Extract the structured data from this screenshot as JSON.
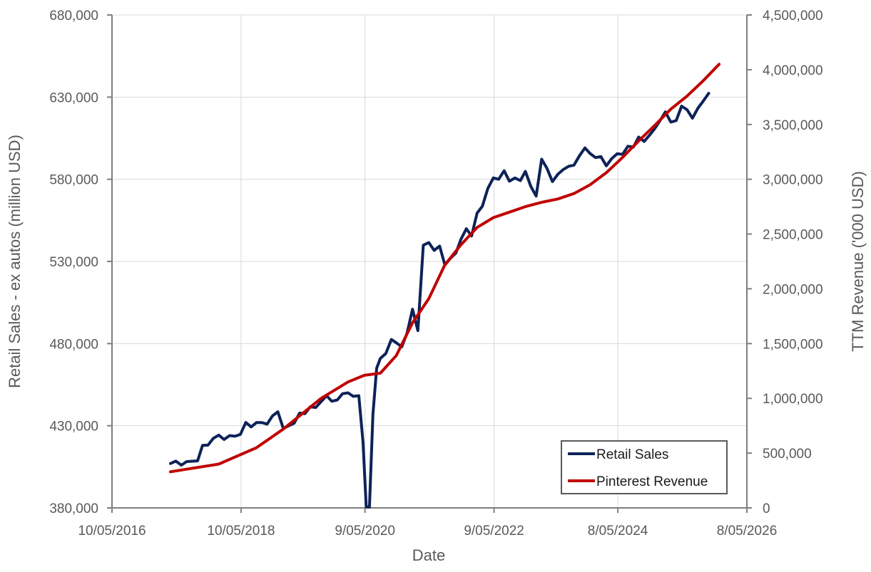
{
  "chart_data": {
    "type": "line",
    "xlabel": "Date",
    "ylabel": "Retail Sales - ex autos (million USD)",
    "y2label": "TTM Revenue ('000 USD)",
    "xlim": [
      "2016-10-05",
      "2026-08-05"
    ],
    "ylim": [
      380000,
      680000
    ],
    "y2lim": [
      0,
      4500000
    ],
    "x_ticks": [
      "2016-10-05",
      "2018-10-05",
      "2020-09-05",
      "2022-09-05",
      "2024-08-05",
      "2026-08-05"
    ],
    "x_tick_labels": [
      "10/05/2016",
      "10/05/2018",
      "9/05/2020",
      "9/05/2022",
      "8/05/2024",
      "8/05/2026"
    ],
    "y_ticks": [
      380000,
      430000,
      480000,
      530000,
      580000,
      630000,
      680000
    ],
    "y_tick_labels": [
      "380,000",
      "430,000",
      "480,000",
      "530,000",
      "580,000",
      "630,000",
      "680,000"
    ],
    "y2_ticks": [
      0,
      500000,
      1000000,
      1500000,
      2000000,
      2500000,
      3000000,
      3500000,
      4000000,
      4500000
    ],
    "y2_tick_labels": [
      "0",
      "500,000",
      "1,000,000",
      "1,500,000",
      "2,000,000",
      "2,500,000",
      "3,000,000",
      "3,500,000",
      "4,000,000",
      "4,500,000"
    ],
    "grid": true,
    "legend_position": "bottom-right",
    "series": [
      {
        "name": "Retail Sales",
        "axis": "left",
        "color": "#0d2257",
        "points": [
          [
            "2017-09-01",
            407000
          ],
          [
            "2017-10-01",
            408500
          ],
          [
            "2017-11-01",
            406000
          ],
          [
            "2017-12-01",
            408200
          ],
          [
            "2018-01-01",
            408400
          ],
          [
            "2018-02-01",
            408600
          ],
          [
            "2018-03-01",
            418000
          ],
          [
            "2018-04-01",
            418200
          ],
          [
            "2018-05-01",
            422300
          ],
          [
            "2018-06-01",
            424300
          ],
          [
            "2018-07-01",
            421600
          ],
          [
            "2018-08-01",
            424000
          ],
          [
            "2018-09-01",
            423600
          ],
          [
            "2018-10-01",
            424700
          ],
          [
            "2018-11-01",
            432000
          ],
          [
            "2018-12-01",
            429300
          ],
          [
            "2019-01-01",
            432000
          ],
          [
            "2019-02-01",
            431900
          ],
          [
            "2019-03-01",
            431000
          ],
          [
            "2019-04-01",
            436000
          ],
          [
            "2019-05-01",
            438500
          ],
          [
            "2019-06-01",
            428300
          ],
          [
            "2019-07-01",
            430000
          ],
          [
            "2019-08-01",
            431500
          ],
          [
            "2019-09-01",
            437700
          ],
          [
            "2019-10-01",
            437300
          ],
          [
            "2019-11-01",
            441600
          ],
          [
            "2019-12-01",
            441100
          ],
          [
            "2020-01-01",
            444700
          ],
          [
            "2020-02-01",
            448300
          ],
          [
            "2020-03-01",
            444900
          ],
          [
            "2020-04-01",
            445700
          ],
          [
            "2020-05-01",
            449500
          ],
          [
            "2020-06-01",
            450000
          ],
          [
            "2020-07-01",
            447900
          ],
          [
            "2020-08-01",
            448300
          ],
          [
            "2020-08-25",
            420000
          ],
          [
            "2020-09-12",
            380500
          ],
          [
            "2020-09-30",
            380500
          ],
          [
            "2020-10-20",
            437000
          ],
          [
            "2020-11-10",
            465000
          ],
          [
            "2020-12-01",
            471000
          ],
          [
            "2021-01-01",
            474000
          ],
          [
            "2021-02-01",
            482500
          ],
          [
            "2021-03-01",
            480500
          ],
          [
            "2021-04-01",
            478000
          ],
          [
            "2021-05-01",
            486300
          ],
          [
            "2021-06-01",
            500900
          ],
          [
            "2021-07-01",
            487900
          ],
          [
            "2021-08-01",
            539900
          ],
          [
            "2021-09-01",
            541500
          ],
          [
            "2021-10-01",
            536700
          ],
          [
            "2021-11-01",
            539300
          ],
          [
            "2021-12-01",
            527800
          ],
          [
            "2022-01-01",
            531900
          ],
          [
            "2022-02-01",
            535100
          ],
          [
            "2022-03-01",
            543300
          ],
          [
            "2022-04-01",
            549900
          ],
          [
            "2022-05-01",
            545500
          ],
          [
            "2022-06-01",
            559400
          ],
          [
            "2022-07-01",
            563600
          ],
          [
            "2022-08-01",
            574500
          ],
          [
            "2022-09-01",
            580800
          ],
          [
            "2022-10-01",
            580000
          ],
          [
            "2022-11-01",
            585200
          ],
          [
            "2022-12-01",
            578800
          ],
          [
            "2023-01-01",
            580800
          ],
          [
            "2023-02-01",
            579200
          ],
          [
            "2023-03-01",
            584800
          ],
          [
            "2023-04-01",
            575700
          ],
          [
            "2023-05-01",
            569800
          ],
          [
            "2023-06-01",
            592200
          ],
          [
            "2023-07-01",
            586700
          ],
          [
            "2023-08-01",
            578600
          ],
          [
            "2023-09-01",
            583100
          ],
          [
            "2023-10-01",
            585900
          ],
          [
            "2023-11-01",
            587900
          ],
          [
            "2023-12-01",
            588600
          ],
          [
            "2024-01-01",
            594300
          ],
          [
            "2024-02-01",
            599100
          ],
          [
            "2024-03-01",
            595700
          ],
          [
            "2024-04-01",
            593200
          ],
          [
            "2024-05-01",
            593800
          ],
          [
            "2024-06-01",
            588200
          ],
          [
            "2024-07-01",
            592500
          ],
          [
            "2024-08-01",
            595500
          ],
          [
            "2024-09-01",
            595200
          ],
          [
            "2024-10-01",
            600100
          ],
          [
            "2024-11-01",
            599600
          ],
          [
            "2024-12-01",
            605700
          ],
          [
            "2025-01-01",
            603000
          ],
          [
            "2025-02-01",
            606900
          ],
          [
            "2025-03-01",
            610700
          ],
          [
            "2025-04-01",
            615700
          ],
          [
            "2025-05-01",
            621000
          ],
          [
            "2025-06-01",
            614800
          ],
          [
            "2025-07-01",
            615700
          ],
          [
            "2025-08-01",
            624500
          ],
          [
            "2025-09-01",
            622300
          ],
          [
            "2025-10-01",
            617200
          ],
          [
            "2025-11-01",
            623200
          ],
          [
            "2025-12-01",
            627600
          ],
          [
            "2026-01-01",
            632300
          ]
        ]
      },
      {
        "name": "Pinterest Revenue",
        "axis": "right",
        "color": "#c00000",
        "points": [
          [
            "2017-09-01",
            330000
          ],
          [
            "2018-06-01",
            400000
          ],
          [
            "2019-01-01",
            550000
          ],
          [
            "2019-06-01",
            720000
          ],
          [
            "2020-01-01",
            1000000
          ],
          [
            "2020-06-01",
            1150000
          ],
          [
            "2020-09-01",
            1210000
          ],
          [
            "2020-12-01",
            1230000
          ],
          [
            "2021-03-01",
            1390000
          ],
          [
            "2021-06-01",
            1690000
          ],
          [
            "2021-09-01",
            1910000
          ],
          [
            "2021-12-01",
            2220000
          ],
          [
            "2022-03-01",
            2400000
          ],
          [
            "2022-06-01",
            2560000
          ],
          [
            "2022-09-01",
            2650000
          ],
          [
            "2022-12-01",
            2700000
          ],
          [
            "2023-03-01",
            2750000
          ],
          [
            "2023-06-01",
            2790000
          ],
          [
            "2023-09-01",
            2820000
          ],
          [
            "2023-12-01",
            2870000
          ],
          [
            "2024-03-01",
            2950000
          ],
          [
            "2024-06-01",
            3060000
          ],
          [
            "2024-09-01",
            3200000
          ],
          [
            "2024-12-01",
            3350000
          ],
          [
            "2025-03-01",
            3490000
          ],
          [
            "2025-06-01",
            3640000
          ],
          [
            "2025-09-01",
            3760000
          ],
          [
            "2025-12-01",
            3900000
          ],
          [
            "2026-03-01",
            4050000
          ]
        ]
      }
    ]
  }
}
